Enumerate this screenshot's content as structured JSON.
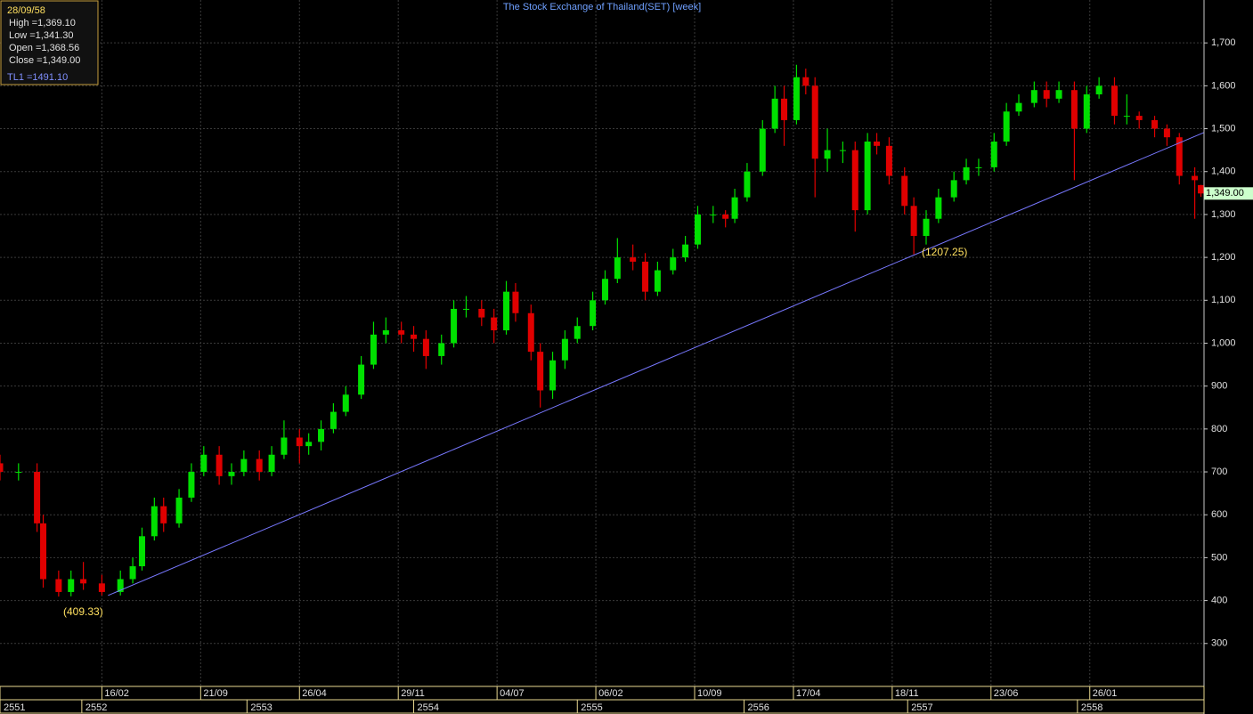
{
  "chart_data": {
    "type": "candlestick",
    "title": "The Stock Exchange of Thailand(SET) [week]",
    "up_color": "#00e000",
    "down_color": "#e00000",
    "x": [
      0,
      6,
      12,
      14,
      19,
      23,
      27,
      33,
      39,
      43,
      46,
      50,
      53,
      58,
      62,
      66,
      71,
      75,
      79,
      84,
      88,
      92,
      97,
      100,
      104,
      108,
      112,
      117,
      121,
      125,
      130,
      134,
      138,
      143,
      147,
      151,
      156,
      160,
      164,
      167,
      172,
      175,
      179,
      183,
      187,
      192,
      196,
      200,
      205,
      209,
      213,
      218,
      222,
      226,
      231,
      235,
      238,
      242,
      247,
      251,
      254,
      258,
      261,
      264,
      268,
      273,
      277,
      281,
      284,
      288,
      293,
      296,
      300,
      304,
      309,
      313,
      317,
      322,
      326,
      330,
      335,
      339,
      343,
      348,
      352,
      356,
      361,
      365,
      369,
      374,
      378,
      382,
      387,
      389
    ],
    "open": [
      720,
      700,
      700,
      580,
      450,
      420,
      450,
      440,
      420,
      450,
      480,
      550,
      620,
      580,
      640,
      700,
      740,
      690,
      700,
      730,
      700,
      740,
      780,
      760,
      770,
      800,
      840,
      880,
      950,
      1020,
      1030,
      1020,
      1010,
      970,
      1000,
      1080,
      1080,
      1060,
      1030,
      1120,
      1070,
      980,
      890,
      960,
      1010,
      1040,
      1100,
      1150,
      1200,
      1190,
      1120,
      1170,
      1200,
      1230,
      1300,
      1300,
      1290,
      1340,
      1400,
      1500,
      1570,
      1520,
      1620,
      1600,
      1430,
      1450,
      1450,
      1310,
      1470,
      1460,
      1390,
      1320,
      1250,
      1290,
      1340,
      1380,
      1410,
      1410,
      1470,
      1540,
      1560,
      1590,
      1570,
      1590,
      1500,
      1580,
      1600,
      1530,
      1530,
      1520,
      1500,
      1480,
      1390,
      1368.56
    ],
    "high": [
      740,
      720,
      720,
      600,
      470,
      470,
      490,
      460,
      470,
      500,
      570,
      640,
      640,
      660,
      720,
      760,
      760,
      720,
      750,
      750,
      760,
      820,
      800,
      790,
      820,
      860,
      900,
      970,
      1050,
      1060,
      1050,
      1040,
      1030,
      1020,
      1100,
      1110,
      1100,
      1080,
      1145,
      1140,
      1090,
      1000,
      980,
      1030,
      1060,
      1120,
      1170,
      1245,
      1230,
      1210,
      1190,
      1220,
      1250,
      1320,
      1320,
      1310,
      1360,
      1420,
      1520,
      1600,
      1600,
      1649,
      1640,
      1620,
      1500,
      1470,
      1470,
      1490,
      1490,
      1480,
      1410,
      1340,
      1310,
      1360,
      1400,
      1430,
      1430,
      1490,
      1560,
      1580,
      1610,
      1610,
      1610,
      1610,
      1600,
      1620,
      1620,
      1580,
      1540,
      1530,
      1510,
      1490,
      1410,
      1369.1
    ],
    "low": [
      680,
      680,
      560,
      430,
      409.33,
      410,
      425,
      412,
      412,
      440,
      470,
      540,
      560,
      570,
      630,
      690,
      670,
      670,
      690,
      680,
      690,
      730,
      720,
      740,
      750,
      790,
      830,
      870,
      940,
      1000,
      1000,
      980,
      940,
      950,
      990,
      1060,
      1040,
      1000,
      1020,
      1050,
      960,
      850,
      870,
      940,
      1000,
      1030,
      1090,
      1140,
      1170,
      1100,
      1110,
      1160,
      1190,
      1220,
      1280,
      1270,
      1280,
      1330,
      1390,
      1490,
      1460,
      1510,
      1580,
      1340,
      1400,
      1420,
      1260,
      1300,
      1440,
      1370,
      1300,
      1207.25,
      1230,
      1280,
      1330,
      1370,
      1390,
      1400,
      1460,
      1530,
      1550,
      1550,
      1560,
      1380,
      1490,
      1570,
      1510,
      1510,
      1500,
      1480,
      1460,
      1370,
      1290,
      1341.3
    ],
    "close": [
      700,
      700,
      580,
      450,
      420,
      450,
      440,
      420,
      450,
      480,
      550,
      620,
      580,
      640,
      700,
      740,
      690,
      700,
      730,
      700,
      740,
      780,
      760,
      770,
      800,
      840,
      880,
      950,
      1020,
      1030,
      1020,
      1010,
      970,
      1000,
      1080,
      1080,
      1060,
      1030,
      1120,
      1070,
      980,
      890,
      960,
      1010,
      1040,
      1100,
      1150,
      1200,
      1190,
      1120,
      1170,
      1200,
      1230,
      1300,
      1300,
      1290,
      1340,
      1400,
      1500,
      1570,
      1520,
      1620,
      1600,
      1430,
      1450,
      1450,
      1310,
      1470,
      1460,
      1390,
      1320,
      1250,
      1290,
      1340,
      1380,
      1410,
      1410,
      1470,
      1540,
      1560,
      1590,
      1570,
      1590,
      1500,
      1580,
      1600,
      1530,
      1530,
      1520,
      1500,
      1480,
      1390,
      1380,
      1349
    ],
    "trendline": {
      "color": "#7878ff",
      "x": [
        35,
        390
      ],
      "values": [
        412,
        1491.1
      ]
    },
    "annotations": [
      "(409.33)",
      "(1207.25)"
    ],
    "last_price_label": "1,349.00",
    "xlim": [
      0,
      390
    ],
    "ylim": [
      202,
      1800
    ],
    "yticks": [
      300,
      400,
      500,
      600,
      700,
      800,
      900,
      {
        "value": 1000,
        "label": "1,000"
      },
      {
        "value": 1100,
        "label": "1,100"
      },
      {
        "value": 1200,
        "label": "1,200"
      },
      {
        "value": 1300,
        "label": "1,300"
      },
      {
        "value": 1400,
        "label": "1,400"
      },
      {
        "value": 1500,
        "label": "1,500"
      },
      {
        "value": 1600,
        "label": "1,600"
      },
      {
        "value": 1700,
        "label": "1,700"
      }
    ],
    "xticks": [
      {
        "value": 33,
        "label": "16/02"
      },
      {
        "value": 65,
        "label": "21/09"
      },
      {
        "value": 97,
        "label": "26/04"
      },
      {
        "value": 129,
        "label": "29/11"
      },
      {
        "value": 161,
        "label": "04/07"
      },
      {
        "value": 193,
        "label": "06/02"
      },
      {
        "value": 225,
        "label": "10/09"
      },
      {
        "value": 257,
        "label": "17/04"
      },
      {
        "value": 289,
        "label": "18/11"
      },
      {
        "value": 321,
        "label": "23/06"
      },
      {
        "value": 353,
        "label": "26/01"
      }
    ],
    "year_ticks": [
      {
        "value": 0,
        "label": "2551"
      },
      {
        "value": 26.5,
        "label": "2552"
      },
      {
        "value": 80,
        "label": "2553"
      },
      {
        "value": 134,
        "label": "2554"
      },
      {
        "value": 187,
        "label": "2555"
      },
      {
        "value": 241,
        "label": "2556"
      },
      {
        "value": 294,
        "label": "2557"
      },
      {
        "value": 349,
        "label": "2558"
      }
    ],
    "grid": true,
    "info": {
      "date": "28/09/58",
      "high": "High  =1,369.10",
      "low": "Low  =1,341.30",
      "open": "Open  =1,368.56",
      "close": "Close  =1,349.00",
      "tl": "TL1 =1491.10"
    }
  }
}
